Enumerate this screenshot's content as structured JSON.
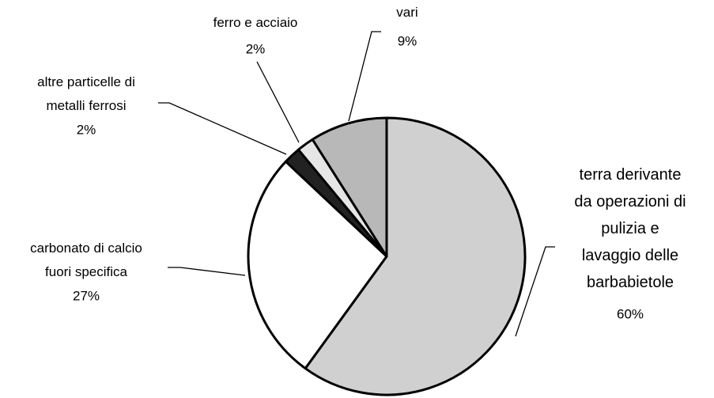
{
  "chart_data": {
    "type": "pie",
    "categories": [
      "terra derivante da operazioni di pulizia e lavaggio delle barbabietole",
      "carbonato di calcio fuori specifica",
      "altre particelle di metalli ferrosi",
      "ferro e acciaio",
      "vari"
    ],
    "values": [
      60,
      27,
      2,
      2,
      9
    ],
    "value_labels": [
      "60%",
      "27%",
      "2%",
      "2%",
      "9%"
    ],
    "colors": [
      "#d0d0d0",
      "#ffffff",
      "#222222",
      "#e6e6e6",
      "#b8b8b8"
    ]
  }
}
